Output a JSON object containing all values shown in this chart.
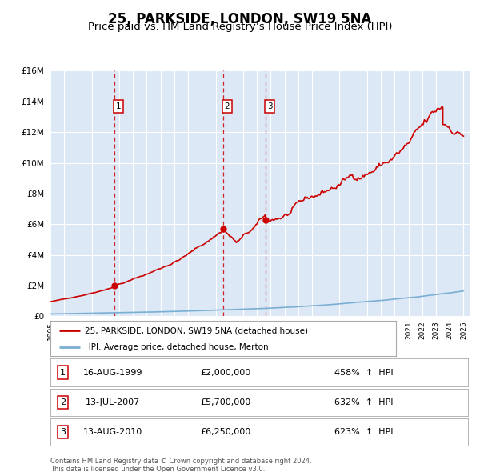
{
  "title": "25, PARKSIDE, LONDON, SW19 5NA",
  "subtitle": "Price paid vs. HM Land Registry’s House Price Index (HPI)",
  "title_fontsize": 12,
  "subtitle_fontsize": 9.5,
  "background_color": "#ffffff",
  "plot_bg_color": "#dce8f5",
  "ylim": [
    0,
    16000000
  ],
  "yticks": [
    0,
    2000000,
    4000000,
    6000000,
    8000000,
    10000000,
    12000000,
    14000000,
    16000000
  ],
  "ytick_labels": [
    "£0",
    "£2M",
    "£4M",
    "£6M",
    "£8M",
    "£10M",
    "£12M",
    "£14M",
    "£16M"
  ],
  "xmin": 1995.25,
  "xmax": 2025.5,
  "sale_color": "#cc0000",
  "hpi_color": "#7aafd4",
  "sale_linewidth": 1.2,
  "hpi_linewidth": 1.2,
  "grid_color": "#ffffff",
  "legend_label_sale": "25, PARKSIDE, LONDON, SW19 5NA (detached house)",
  "legend_label_hpi": "HPI: Average price, detached house, Merton",
  "transactions": [
    {
      "id": 1,
      "date": "16-AUG-1999",
      "year": 1999.62,
      "price": 2000000,
      "hpi_pct": "458%",
      "direction": "↑"
    },
    {
      "id": 2,
      "date": "13-JUL-2007",
      "year": 2007.54,
      "price": 5700000,
      "hpi_pct": "632%",
      "direction": "↑"
    },
    {
      "id": 3,
      "date": "13-AUG-2010",
      "year": 2010.62,
      "price": 6250000,
      "hpi_pct": "623%",
      "direction": "↑"
    }
  ],
  "footer_line1": "Contains HM Land Registry data © Crown copyright and database right 2024.",
  "footer_line2": "This data is licensed under the Open Government Licence v3.0."
}
